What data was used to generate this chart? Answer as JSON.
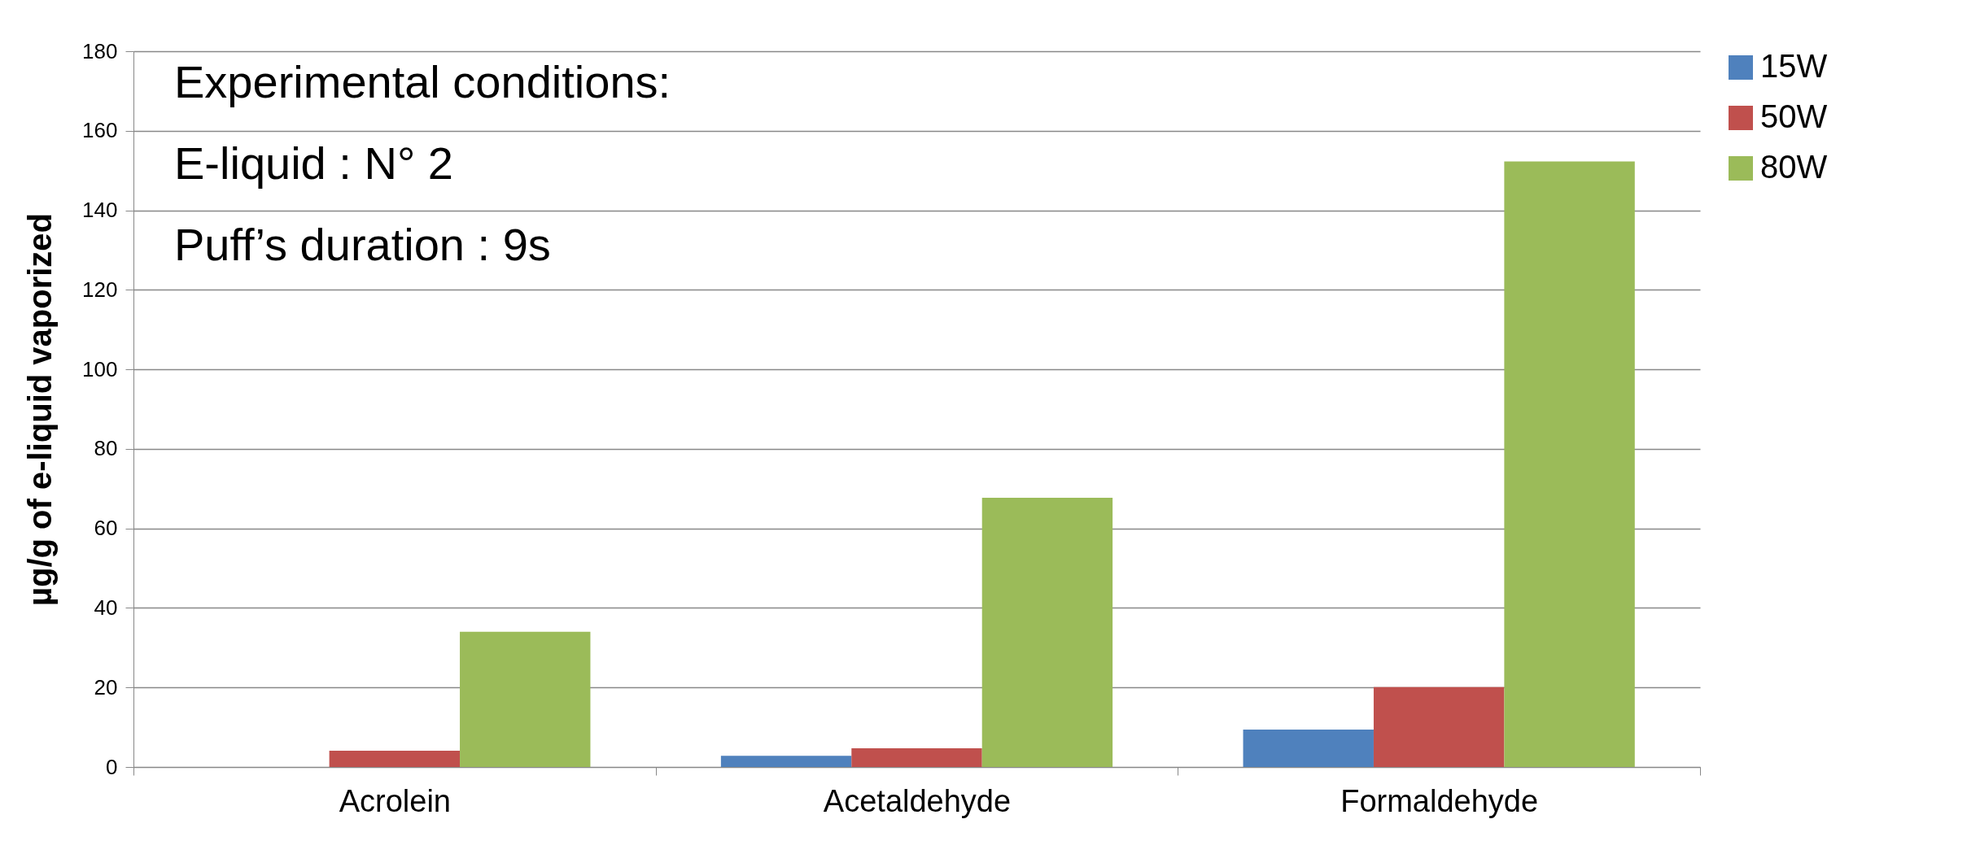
{
  "chart_data": {
    "type": "bar",
    "ylabel": "µg/g of e-liquid vaporized",
    "categories": [
      "Acrolein",
      "Acetaldehyde",
      "Formaldehyde"
    ],
    "series": [
      {
        "name": "15W",
        "color": "#4f81bd",
        "values": [
          null,
          2.8,
          9.4
        ]
      },
      {
        "name": "50W",
        "color": "#c0504d",
        "values": [
          4.1,
          4.7,
          20.1
        ]
      },
      {
        "name": "80W",
        "color": "#9bbb59",
        "values": [
          34,
          67.7,
          152.3
        ]
      }
    ],
    "ylim": [
      0,
      180
    ],
    "yticks": [
      0,
      20,
      40,
      60,
      80,
      100,
      120,
      140,
      160,
      180
    ],
    "grid": "y",
    "legend": "right",
    "annotations": [
      "Experimental conditions:",
      "E-liquid : N°  2",
      "Puff’s duration : 9s"
    ]
  }
}
